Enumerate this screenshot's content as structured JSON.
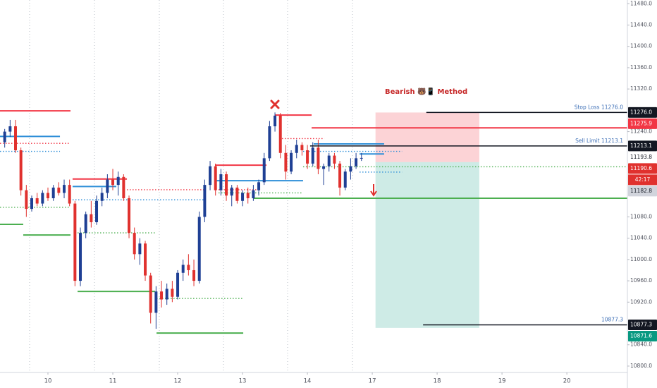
{
  "chart_data": {
    "type": "candlestick",
    "title": "Bearish 🐻📱 Method",
    "x": [
      4,
      5,
      6,
      7,
      8,
      9,
      10,
      11,
      12,
      13,
      14,
      15,
      16,
      17,
      18,
      19,
      20,
      21,
      22,
      23,
      24,
      25,
      26,
      27,
      28,
      29,
      30,
      31,
      32,
      33,
      34,
      35,
      36,
      37,
      38,
      39,
      40,
      41,
      42,
      43,
      44,
      45,
      46,
      47,
      48,
      49,
      50,
      51,
      52,
      53,
      54,
      55,
      56,
      57,
      58,
      59,
      60,
      61,
      62,
      63,
      64,
      65,
      66,
      67,
      68,
      69,
      70
    ],
    "open": [
      11220,
      11240,
      11250,
      11205,
      11130,
      11095,
      11115,
      11105,
      11125,
      11115,
      11135,
      11125,
      11140,
      11105,
      10960,
      11050,
      11085,
      11070,
      11110,
      11125,
      11150,
      11140,
      11155,
      11115,
      11050,
      11010,
      11030,
      10970,
      10900,
      10940,
      10925,
      10945,
      10930,
      10975,
      10990,
      10980,
      10960,
      11080,
      11140,
      11175,
      11130,
      11160,
      11120,
      11135,
      11110,
      11125,
      11115,
      11130,
      11145,
      11190,
      11250,
      11270,
      11200,
      11165,
      11200,
      11215,
      11205,
      11180,
      11210,
      11170,
      11175,
      11195,
      11180,
      11135,
      11165,
      11175,
      11190
    ],
    "high": [
      11245,
      11262,
      11262,
      11210,
      11140,
      11120,
      11125,
      11130,
      11135,
      11140,
      11145,
      11150,
      11150,
      11110,
      11060,
      11090,
      11110,
      11120,
      11135,
      11160,
      11170,
      11165,
      11160,
      11120,
      11060,
      11040,
      11035,
      10975,
      10950,
      10960,
      10955,
      10960,
      10980,
      11000,
      11010,
      11000,
      11090,
      11150,
      11185,
      11180,
      11170,
      11165,
      11140,
      11140,
      11130,
      11135,
      11140,
      11150,
      11200,
      11260,
      11276,
      11275,
      11215,
      11205,
      11225,
      11220,
      11215,
      11220,
      11225,
      11180,
      11200,
      11200,
      11185,
      11170,
      11190,
      11200,
      11200
    ],
    "low": [
      11210,
      11230,
      11200,
      11120,
      11080,
      11090,
      11100,
      11100,
      11110,
      11110,
      11120,
      11115,
      11100,
      10950,
      10950,
      11040,
      11060,
      11065,
      11100,
      11115,
      11130,
      11120,
      11110,
      11040,
      11000,
      10990,
      10960,
      10880,
      10870,
      10910,
      10915,
      10920,
      10925,
      10960,
      10970,
      10950,
      10955,
      11070,
      11130,
      11120,
      11120,
      11110,
      11100,
      11105,
      11100,
      11105,
      11110,
      11120,
      11140,
      11185,
      11240,
      11190,
      11150,
      11160,
      11190,
      11195,
      11170,
      11175,
      11160,
      11140,
      11165,
      11170,
      11120,
      11130,
      11150,
      11170,
      11185
    ],
    "close": [
      11240,
      11250,
      11205,
      11130,
      11095,
      11115,
      11105,
      11125,
      11115,
      11135,
      11125,
      11140,
      11105,
      10960,
      11050,
      11085,
      11070,
      11110,
      11125,
      11150,
      11140,
      11155,
      11115,
      11050,
      11010,
      11030,
      10970,
      10900,
      10940,
      10925,
      10945,
      10930,
      10975,
      10990,
      10980,
      10960,
      11080,
      11140,
      11175,
      11130,
      11160,
      11120,
      11135,
      11110,
      11125,
      11115,
      11130,
      11145,
      11190,
      11250,
      11270,
      11200,
      11165,
      11200,
      11215,
      11205,
      11180,
      11210,
      11170,
      11175,
      11195,
      11180,
      11135,
      11165,
      11175,
      11190,
      11190.6
    ],
    "up_color": "#1e3f94",
    "down_color": "#e0312e",
    "xlim": [
      3.13,
      119.2
    ],
    "xticks": [
      {
        "value": 12,
        "label": "10"
      },
      {
        "value": 24,
        "label": "11"
      },
      {
        "value": 36,
        "label": "12"
      },
      {
        "value": 48,
        "label": "13"
      },
      {
        "value": 60,
        "label": "14"
      },
      {
        "value": 72,
        "label": "17"
      },
      {
        "value": 84,
        "label": "18"
      },
      {
        "value": 96,
        "label": "19"
      },
      {
        "value": 108,
        "label": "20"
      }
    ],
    "ylim": [
      10788,
      11487
    ],
    "yticks": [
      {
        "value": 10800,
        "label": "10800.0"
      },
      {
        "value": 10840,
        "label": "10840.0"
      },
      {
        "value": 10920,
        "label": "10920.0"
      },
      {
        "value": 10960,
        "label": "10960.0"
      },
      {
        "value": 11000,
        "label": "11000.0"
      },
      {
        "value": 11040,
        "label": "11040.0"
      },
      {
        "value": 11080,
        "label": "11080.0"
      },
      {
        "value": 11240,
        "label": "11240.0"
      },
      {
        "value": 11320,
        "label": "11320.0"
      },
      {
        "value": 11360,
        "label": "11360.0"
      },
      {
        "value": 11400,
        "label": "11400.0"
      },
      {
        "value": 11440,
        "label": "11440.0"
      },
      {
        "value": 11480,
        "label": "11480.0"
      }
    ],
    "levels": [
      {
        "color": "#f23645",
        "style": "solid",
        "x": [
          3.13,
          16.17
        ],
        "value": 11279
      },
      {
        "color": "#2f8fd8",
        "style": "solid",
        "x": [
          3.13,
          14.22
        ],
        "value": 11231
      },
      {
        "color": "#f23645",
        "style": "dotted",
        "x": [
          3.13,
          16.17
        ],
        "value": 11218
      },
      {
        "color": "#2f8fd8",
        "style": "dotted",
        "x": [
          3.13,
          14.22
        ],
        "value": 11203
      },
      {
        "color": "#4caf50",
        "style": "dotted",
        "x": [
          3.13,
          16.17
        ],
        "value": 11098
      },
      {
        "color": "#4caf50",
        "style": "solid",
        "x": [
          3.13,
          7.43
        ],
        "value": 11066
      },
      {
        "color": "#4caf50",
        "style": "solid",
        "x": [
          7.43,
          16.17
        ],
        "value": 11046
      },
      {
        "color": "#f23645",
        "style": "solid",
        "x": [
          16.56,
          26.61
        ],
        "value": 11151
      },
      {
        "color": "#2f8fd8",
        "style": "solid",
        "x": [
          16.56,
          24.65
        ],
        "value": 11137
      },
      {
        "color": "#f23645",
        "style": "dotted",
        "x": [
          26.61,
          40.95
        ],
        "value": 11131
      },
      {
        "color": "#2f8fd8",
        "style": "dotted",
        "x": [
          16.56,
          40.95
        ],
        "value": 11112
      },
      {
        "color": "#4caf50",
        "style": "dotted",
        "x": [
          17.48,
          31.83
        ],
        "value": 11050
      },
      {
        "color": "#4caf50",
        "style": "solid",
        "x": [
          17.48,
          31.83
        ],
        "value": 10940
      },
      {
        "color": "#4caf50",
        "style": "dotted",
        "x": [
          32.09,
          48.13
        ],
        "value": 10927
      },
      {
        "color": "#4caf50",
        "style": "solid",
        "x": [
          32.09,
          48.13
        ],
        "value": 10862
      },
      {
        "color": "#f23645",
        "style": "solid",
        "x": [
          42.91,
          52.43
        ],
        "value": 11177
      },
      {
        "color": "#2f8fd8",
        "style": "solid",
        "x": [
          42.91,
          59.2
        ],
        "value": 11148
      },
      {
        "color": "#f23645",
        "style": "dotted",
        "x": [
          43.56,
          51.39
        ],
        "value": 11131
      },
      {
        "color": "#4caf50",
        "style": "dotted",
        "x": [
          43.56,
          59.2
        ],
        "value": 11125
      },
      {
        "color": "#f23645",
        "style": "solid",
        "x": [
          54.0,
          60.78
        ],
        "value": 11271
      },
      {
        "color": "#f23645",
        "style": "solid",
        "x": [
          60.78,
          119.2
        ],
        "value": 11247
      },
      {
        "color": "#f23645",
        "style": "dotted",
        "x": [
          55.3,
          63.13
        ],
        "value": 11227
      },
      {
        "color": "#2f8fd8",
        "style": "solid",
        "x": [
          61.17,
          74.2
        ],
        "value": 11217
      },
      {
        "color": "#2f8fd8",
        "style": "dotted",
        "x": [
          59.2,
          77.5
        ],
        "value": 11203
      },
      {
        "color": "#2f8fd8",
        "style": "solid",
        "x": [
          69.65,
          74.2
        ],
        "value": 11198
      },
      {
        "color": "#4caf50",
        "style": "dotted",
        "x": [
          59.2,
          119.2
        ],
        "value": 11174
      },
      {
        "color": "#2f8fd8",
        "style": "dotted",
        "x": [
          69.65,
          77.5
        ],
        "value": 11164
      },
      {
        "color": "#4caf50",
        "style": "solid",
        "x": [
          50.08,
          119.2
        ],
        "value": 11115
      }
    ],
    "position": {
      "x": [
        72.6,
        91.8
      ],
      "stop": 11275.9,
      "entry": 11182.8,
      "target": 10871.6,
      "stop_color": "rgba(242,54,69,0.22)",
      "target_color": "rgba(8,153,129,0.2)"
    },
    "annotations": [
      {
        "text": "Stop Loss 11276.0",
        "value": 11276.0,
        "x": [
          82.0,
          119.2
        ]
      },
      {
        "text": "Sell Limit 11213.1",
        "value": 11213.1,
        "x": [
          60.5,
          119.2
        ]
      },
      {
        "text": "10877.3",
        "value": 10877.3,
        "x": [
          81.4,
          119.2
        ]
      }
    ],
    "price_labels": [
      {
        "value": 11276.0,
        "label": "11276.0",
        "bg": "#131722",
        "color": "#ffffff"
      },
      {
        "value": 11275.9,
        "label": "11275.9",
        "bg": "#f23645",
        "color": "#ffffff"
      },
      {
        "value": 11213.1,
        "label": "11213.1",
        "bg": "#131722",
        "color": "#ffffff"
      },
      {
        "value": 11193.8,
        "label": "11193.8",
        "bg": "#ffffff",
        "color": "#131722"
      },
      {
        "value": 11190.6,
        "label": "11190.6",
        "bg": "#e0312e",
        "color": "#ffffff",
        "countdown": "42:17"
      },
      {
        "value": 11182.8,
        "label": "11182.8",
        "bg": "#d1d4dc",
        "color": "#131722"
      },
      {
        "value": 10877.3,
        "label": "10877.3",
        "bg": "#131722",
        "color": "#ffffff"
      },
      {
        "value": 10871.6,
        "label": "10871.6",
        "bg": "#089981",
        "color": "#ffffff"
      }
    ]
  }
}
